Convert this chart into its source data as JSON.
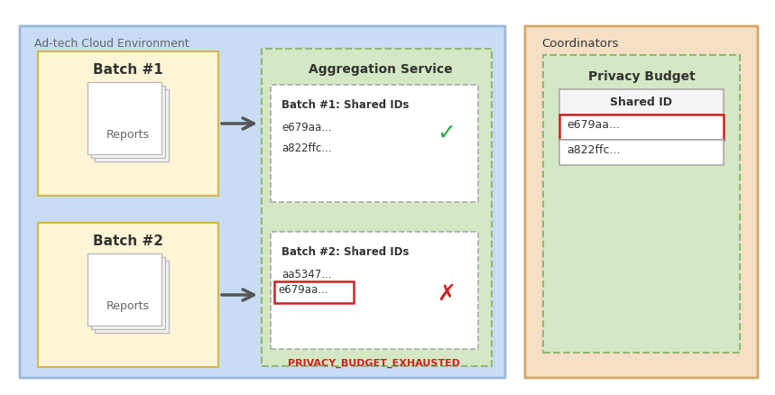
{
  "bg_color": "#ffffff",
  "fig_w": 8.59,
  "fig_h": 4.39,
  "adtech_title": "Ad-tech Cloud Environment",
  "coordinators_title": "Coordinators",
  "agg_service_title": "Aggregation Service",
  "privacy_budget_title": "Privacy Budget",
  "batch1_title": "Batch #1",
  "batch2_title": "Batch #2",
  "reports_text": "Reports",
  "batch1_ids_title": "Batch #1: Shared IDs",
  "batch1_id1": "e679aa...",
  "batch1_id2": "a822ffc...",
  "batch2_ids_title": "Batch #2: Shared IDs",
  "batch2_id1": "aa5347...",
  "batch2_id2": "e679aa...",
  "privacy_budget_id1": "e679aa...",
  "privacy_budget_id2": "a822ffc...",
  "exhausted_text": "PRIVACY_BUDGET_EXHAUSTED",
  "shared_id_header": "Shared ID",
  "adtech_color": "#c8ddf5",
  "coord_color": "#f5dfc5",
  "agg_color": "#d5e8c5",
  "pb_color": "#d5e8c5",
  "batch_box_color": "#fdf5d5",
  "white": "#ffffff",
  "paper_color": "#f8f8f5",
  "adtech_edge": "#9bb8d8",
  "coord_edge": "#d4a868",
  "agg_edge": "#90b870",
  "pb_edge": "#90b870",
  "batch_edge": "#d4b844",
  "gray_edge": "#aaaaaa",
  "red_color": "#cc2222",
  "green_color": "#22aa44",
  "text_dark": "#333333",
  "text_gray": "#666666"
}
